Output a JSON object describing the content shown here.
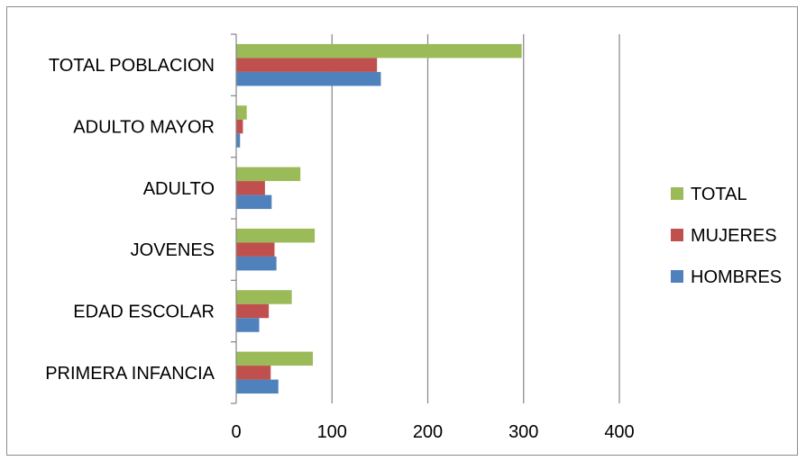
{
  "chart_data": {
    "type": "bar",
    "orientation": "horizontal",
    "categories": [
      "PRIMERA INFANCIA",
      "EDAD ESCOLAR",
      "JOVENES",
      "ADULTO",
      "ADULTO MAYOR",
      "TOTAL POBLACION"
    ],
    "series": [
      {
        "name": "HOMBRES",
        "color": "#4f81bd",
        "values": [
          44,
          24,
          42,
          37,
          4,
          151
        ]
      },
      {
        "name": "MUJERES",
        "color": "#c0504d",
        "values": [
          36,
          34,
          40,
          30,
          7,
          147
        ]
      },
      {
        "name": "TOTAL",
        "color": "#9bbb59",
        "values": [
          80,
          58,
          82,
          67,
          11,
          298
        ]
      }
    ],
    "xlim": [
      0,
      400
    ],
    "xticks": [
      0,
      100,
      200,
      300,
      400
    ],
    "grid": "vertical",
    "legend_position": "right",
    "legend_order": [
      "TOTAL",
      "MUJERES",
      "HOMBRES"
    ]
  }
}
